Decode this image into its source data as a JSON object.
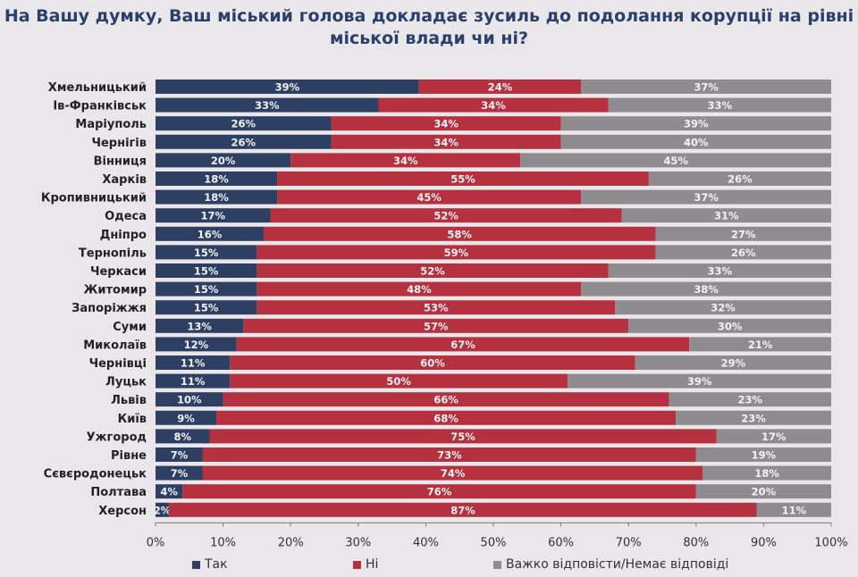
{
  "title": "На Вашу думку, Ваш міський голова докладає зусиль до подолання корупції на рівні міської влади чи ні?",
  "chart_data": {
    "type": "bar",
    "stacked": true,
    "orientation": "horizontal",
    "title": "На Вашу думку, Ваш міський голова докладає зусиль до подолання корупції на рівні міської влади чи ні?",
    "categories": [
      "Хмельницький",
      "Ів-Франківськ",
      "Маріуполь",
      "Чернігів",
      "Вінниця",
      "Харків",
      "Кропивницький",
      "Одеса",
      "Дніпро",
      "Тернопіль",
      "Черкаси",
      "Житомир",
      "Запоріжжя",
      "Суми",
      "Миколаїв",
      "Чернівці",
      "Луцьк",
      "Львів",
      "Київ",
      "Ужгород",
      "Рівне",
      "Сєвєродонецьк",
      "Полтава",
      "Херсон"
    ],
    "series": [
      {
        "name": "Так",
        "color": "#2d3f63",
        "values": [
          39,
          33,
          26,
          26,
          20,
          18,
          18,
          17,
          16,
          15,
          15,
          15,
          15,
          13,
          12,
          11,
          11,
          10,
          9,
          8,
          7,
          7,
          4,
          2
        ]
      },
      {
        "name": "Ні",
        "color": "#b5313f",
        "values": [
          24,
          34,
          34,
          34,
          34,
          55,
          45,
          52,
          58,
          59,
          52,
          48,
          53,
          57,
          67,
          60,
          50,
          66,
          68,
          75,
          73,
          74,
          76,
          87
        ]
      },
      {
        "name": "Важко відповісти/Немає відповіді",
        "color": "#8f8c90",
        "values": [
          37,
          33,
          39,
          40,
          45,
          26,
          37,
          31,
          27,
          26,
          33,
          38,
          32,
          30,
          21,
          29,
          39,
          23,
          23,
          17,
          19,
          18,
          20,
          11
        ]
      }
    ],
    "xticks": [
      "0%",
      "10%",
      "20%",
      "30%",
      "40%",
      "50%",
      "60%",
      "70%",
      "80%",
      "90%",
      "100%"
    ],
    "xlim": [
      0,
      100
    ],
    "legend": "bottom",
    "grid": false
  }
}
